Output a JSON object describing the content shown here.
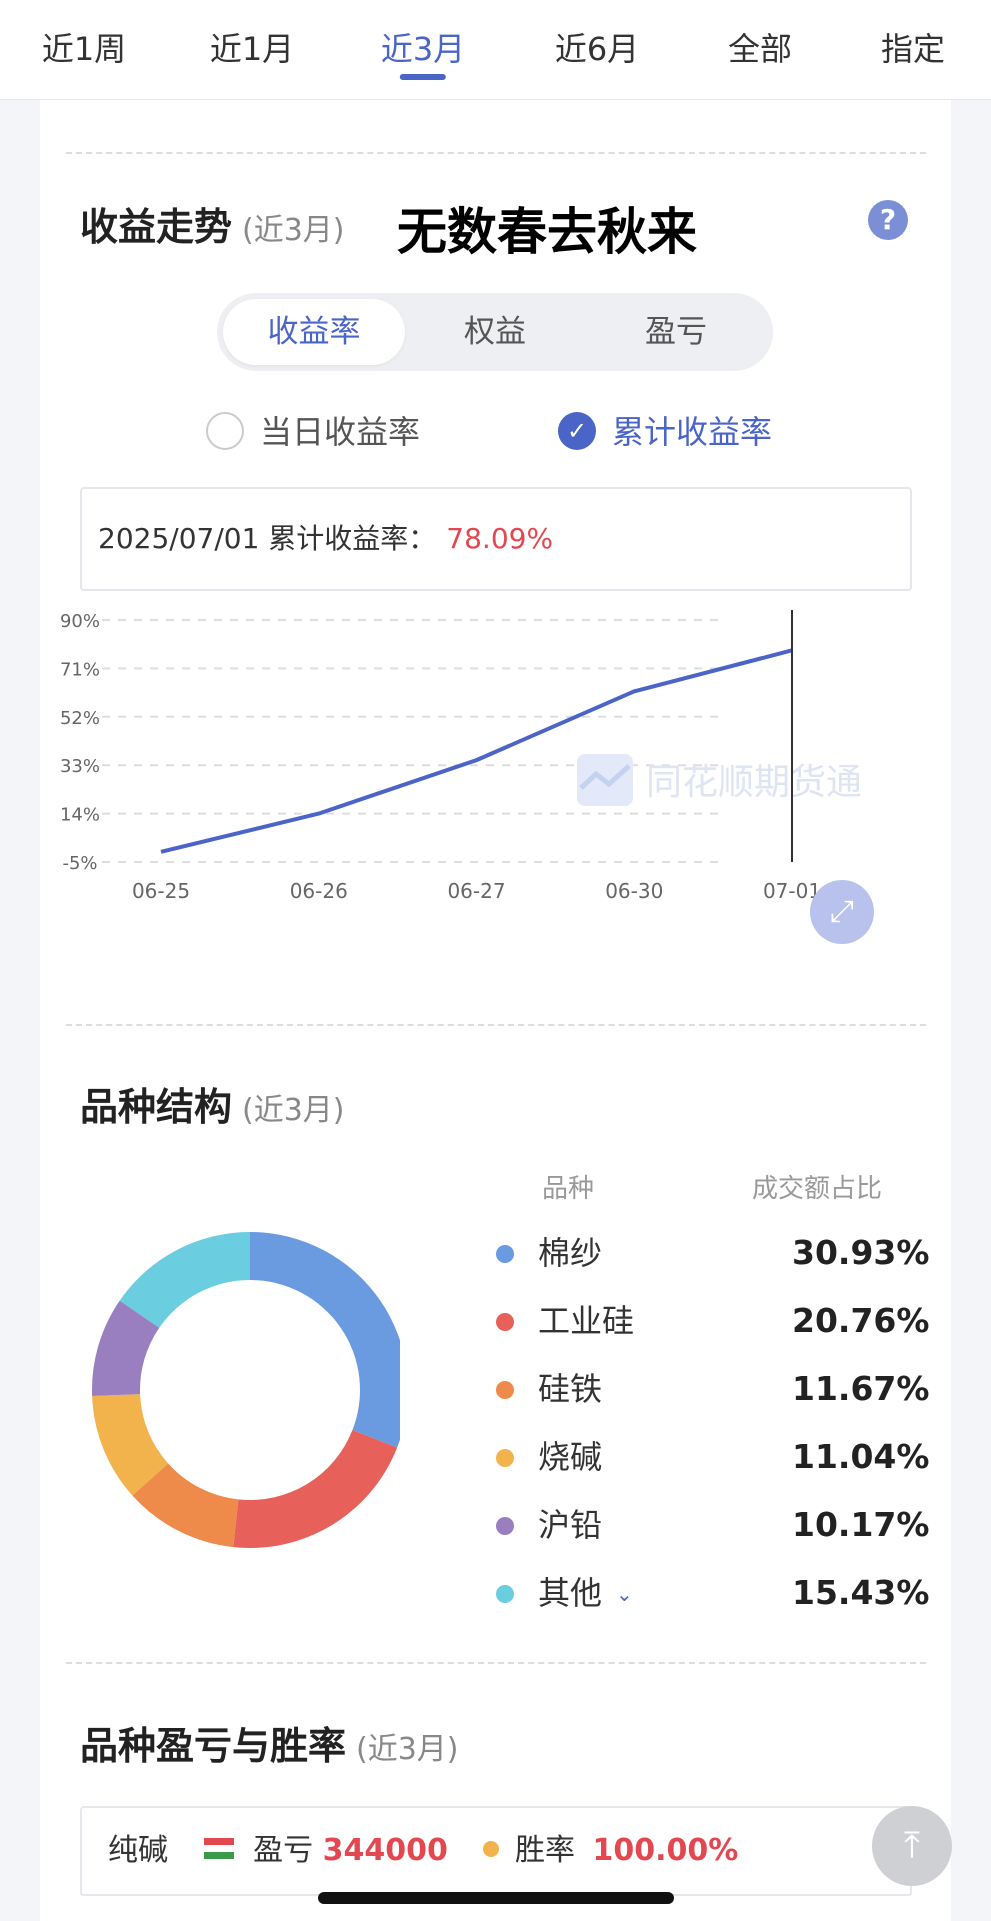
{
  "tabs": [
    {
      "label": "近1周",
      "active": false
    },
    {
      "label": "近1月",
      "active": false
    },
    {
      "label": "近3月",
      "active": true
    },
    {
      "label": "近6月",
      "active": false
    },
    {
      "label": "全部",
      "active": false
    },
    {
      "label": "指定",
      "active": false
    }
  ],
  "trend": {
    "title": "收益走势",
    "period": "(近3月)",
    "overlay_text": "无数春去秋来",
    "help": "?",
    "segments": [
      "收益率",
      "权益",
      "盈亏"
    ],
    "active_segment": "收益率",
    "radio_daily": "当日收益率",
    "radio_cumulative": "累计收益率",
    "selected_radio": "累计收益率",
    "info_label": "2025/07/01 累计收益率：",
    "info_value": "78.09%",
    "watermark": "同花顺期货通"
  },
  "chart_data": {
    "type": "line",
    "x": [
      "06-25",
      "06-26",
      "06-27",
      "06-30",
      "07-01"
    ],
    "series": [
      {
        "values": [
          -1,
          14,
          35,
          62,
          78.09
        ]
      }
    ],
    "yticks": [
      "90%",
      "71%",
      "52%",
      "33%",
      "14%",
      "-5%"
    ],
    "ylim": [
      -5,
      90
    ],
    "grid": true,
    "crosshair_at": "07-01",
    "colors": {
      "line": "#4a64c8",
      "grid": "#dcdde2",
      "crosshair": "#333333"
    }
  },
  "structure": {
    "title": "品种结构",
    "period": "(近3月)",
    "col_variety": "品种",
    "col_share": "成交额占比",
    "items": [
      {
        "name": "棉纱",
        "pct": "30.93%",
        "value": 30.93,
        "color": "#6a9be0"
      },
      {
        "name": "工业硅",
        "pct": "20.76%",
        "value": 20.76,
        "color": "#e8605a"
      },
      {
        "name": "硅铁",
        "pct": "11.67%",
        "value": 11.67,
        "color": "#ee8a4a"
      },
      {
        "name": "烧碱",
        "pct": "11.04%",
        "value": 11.04,
        "color": "#f2b24c"
      },
      {
        "name": "沪铅",
        "pct": "10.17%",
        "value": 10.17,
        "color": "#9a7fc0"
      },
      {
        "name": "其他",
        "pct": "15.43%",
        "value": 15.43,
        "color": "#6acde0"
      }
    ],
    "other_chevron": "⌄"
  },
  "profit": {
    "title": "品种盈亏与胜率",
    "period": "(近3月)",
    "variety": "纯碱",
    "pnl_label": "盈亏",
    "pnl_value": "344000",
    "winrate_label": "胜率",
    "winrate_value": "100.00%"
  },
  "icons": {
    "help": "question-icon",
    "fullscreen": "expand-icon",
    "back_top": "back-to-top-icon"
  }
}
